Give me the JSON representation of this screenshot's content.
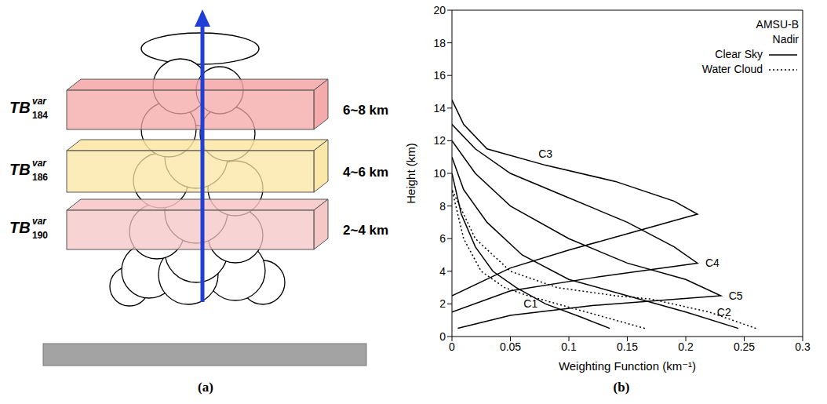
{
  "panel_labels": [
    "(a)",
    "(b)"
  ],
  "diagram": {
    "symbol": "TB",
    "superscript": "var",
    "layers": [
      {
        "subscript": "184",
        "height": "6~8 km",
        "color": "#f4a6a6"
      },
      {
        "subscript": "186",
        "height": "4~6 km",
        "color": "#fbe6a2"
      },
      {
        "subscript": "190",
        "height": "2~4 km",
        "color": "#f6c4c4"
      }
    ]
  },
  "chart_data": {
    "type": "line",
    "x_label": "Weighting Function (km⁻¹)",
    "y_label": "Height (km)",
    "xlim": [
      0,
      0.3
    ],
    "xticks": [
      0,
      0.05,
      0.1,
      0.15,
      0.2,
      0.25,
      0.3
    ],
    "ylim": [
      0,
      20
    ],
    "yticks": [
      0,
      2,
      4,
      6,
      8,
      10,
      12,
      14,
      16,
      18,
      20
    ],
    "legend": "upper right",
    "legend_title": [
      "AMSU-B",
      "Nadir"
    ],
    "legend_entries": [
      {
        "label": "Clear Sky",
        "line_style": "solid"
      },
      {
        "label": "Water Cloud",
        "line_style": "dotted"
      }
    ],
    "color": "#000000",
    "series": [
      {
        "name": "C1",
        "condition": "Clear Sky",
        "x": [
          0.135,
          0.11,
          0.08,
          0.055,
          0.035,
          0.02,
          0.008,
          0
        ],
        "y": [
          0.5,
          1.2,
          2,
          3,
          4,
          5.5,
          7.5,
          10
        ]
      },
      {
        "name": "C1",
        "condition": "Water Cloud",
        "x": [
          0.165,
          0.13,
          0.1,
          0.075,
          0.065,
          0.045,
          0.025,
          0.01,
          0
        ],
        "y": [
          0.5,
          1.2,
          1.8,
          2.3,
          2.5,
          3,
          4,
          6,
          9
        ]
      },
      {
        "name": "C2",
        "condition": "Clear Sky",
        "x": [
          0.245,
          0.2,
          0.15,
          0.1,
          0.06,
          0.03,
          0.01,
          0
        ],
        "y": [
          0.5,
          1.5,
          2.5,
          3.5,
          5,
          7,
          9,
          11
        ]
      },
      {
        "name": "C2",
        "condition": "Water Cloud",
        "x": [
          0.26,
          0.22,
          0.17,
          0.14,
          0.09,
          0.05,
          0.02,
          0
        ],
        "y": [
          0.5,
          1.5,
          2.3,
          2.5,
          3,
          4,
          6,
          9
        ]
      },
      {
        "name": "C3",
        "condition": "Clear Sky",
        "x": [
          0,
          0.05,
          0.1,
          0.15,
          0.19,
          0.21,
          0.19,
          0.14,
          0.08,
          0.03,
          0.01,
          0
        ],
        "y": [
          2.5,
          4.2,
          5.3,
          6.3,
          7.1,
          7.5,
          8.3,
          9.5,
          10.5,
          11.5,
          13,
          14.5
        ]
      },
      {
        "name": "C4",
        "condition": "Clear Sky",
        "x": [
          0,
          0.05,
          0.12,
          0.21,
          0.19,
          0.15,
          0.1,
          0.05,
          0.02,
          0
        ],
        "y": [
          1.5,
          2.8,
          3.6,
          4.5,
          5.5,
          7,
          8.5,
          10,
          11.5,
          13
        ]
      },
      {
        "name": "C5",
        "condition": "Clear Sky",
        "x": [
          0.005,
          0.05,
          0.12,
          0.23,
          0.2,
          0.15,
          0.1,
          0.05,
          0.02,
          0
        ],
        "y": [
          0.5,
          1.3,
          1.9,
          2.5,
          3.5,
          4.5,
          6,
          8,
          10,
          12
        ]
      }
    ]
  }
}
